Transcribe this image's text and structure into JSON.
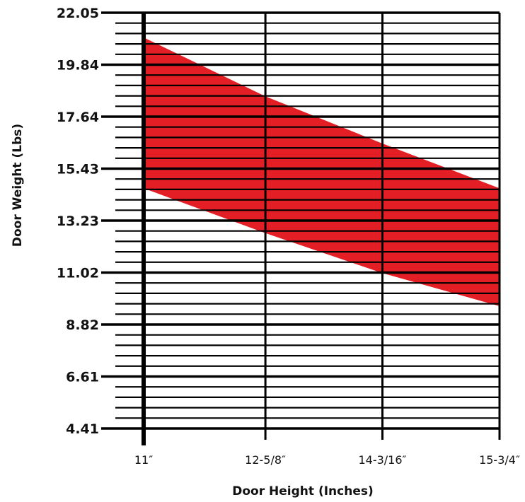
{
  "chart_data": {
    "type": "area",
    "title": "",
    "xlabel": "Door Height (Inches)",
    "ylabel": "Door Weight (Lbs)",
    "x_ticks": [
      "11″",
      "12-5/8″",
      "14-3/16″",
      "15-3/4″"
    ],
    "x_values_inches": [
      11,
      12.625,
      14.1875,
      15.75
    ],
    "y_ticks": [
      "4.41",
      "6.61",
      "8.82",
      "11.02",
      "13.23",
      "15.43",
      "17.64",
      "19.84",
      "22.05"
    ],
    "ylim": [
      4.41,
      22.05
    ],
    "band": {
      "upper": [
        {
          "x": 11,
          "y": 21.0
        },
        {
          "x": 12.625,
          "y": 18.5
        },
        {
          "x": 14.1875,
          "y": 16.5
        },
        {
          "x": 15.75,
          "y": 14.6
        }
      ],
      "lower": [
        {
          "x": 11,
          "y": 14.6
        },
        {
          "x": 12.625,
          "y": 12.7
        },
        {
          "x": 14.1875,
          "y": 11.0
        },
        {
          "x": 15.75,
          "y": 9.6
        }
      ]
    },
    "band_color": "#e31e24",
    "grid": true,
    "legend": "none"
  }
}
